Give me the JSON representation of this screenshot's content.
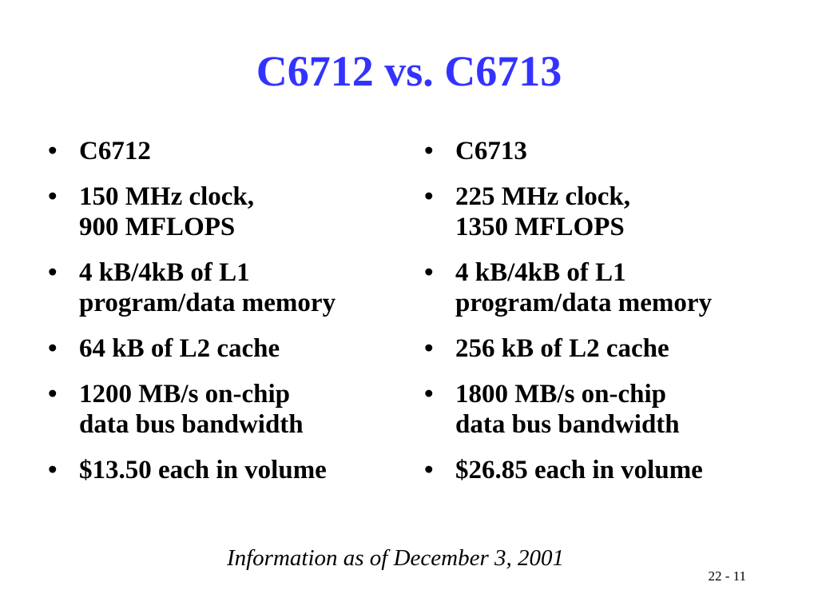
{
  "slide": {
    "title": "C6712 vs. C6713",
    "bullet_char": "•",
    "left_column": {
      "items": [
        {
          "lines": [
            "C6712"
          ]
        },
        {
          "lines": [
            "150 MHz clock,",
            "900 MFLOPS"
          ]
        },
        {
          "lines": [
            "4 kB/4kB of L1",
            "program/data memory"
          ]
        },
        {
          "lines": [
            "64 kB of L2 cache"
          ]
        },
        {
          "lines": [
            "1200 MB/s on-chip",
            "data bus bandwidth"
          ]
        },
        {
          "lines": [
            "$13.50 each in volume"
          ]
        }
      ]
    },
    "right_column": {
      "items": [
        {
          "lines": [
            "C6713"
          ]
        },
        {
          "lines": [
            "225 MHz clock,",
            "1350 MFLOPS"
          ]
        },
        {
          "lines": [
            "4 kB/4kB of L1",
            "program/data memory"
          ]
        },
        {
          "lines": [
            "256 kB of L2 cache"
          ]
        },
        {
          "lines": [
            "1800 MB/s on-chip",
            "data bus bandwidth"
          ]
        },
        {
          "lines": [
            "$26.85 each in volume"
          ]
        }
      ]
    },
    "footer_note": "Information as of December 3, 2001",
    "page_number": "22 - 11",
    "colors": {
      "title": "#3333ff",
      "text": "#000000",
      "background": "#ffffff"
    }
  }
}
